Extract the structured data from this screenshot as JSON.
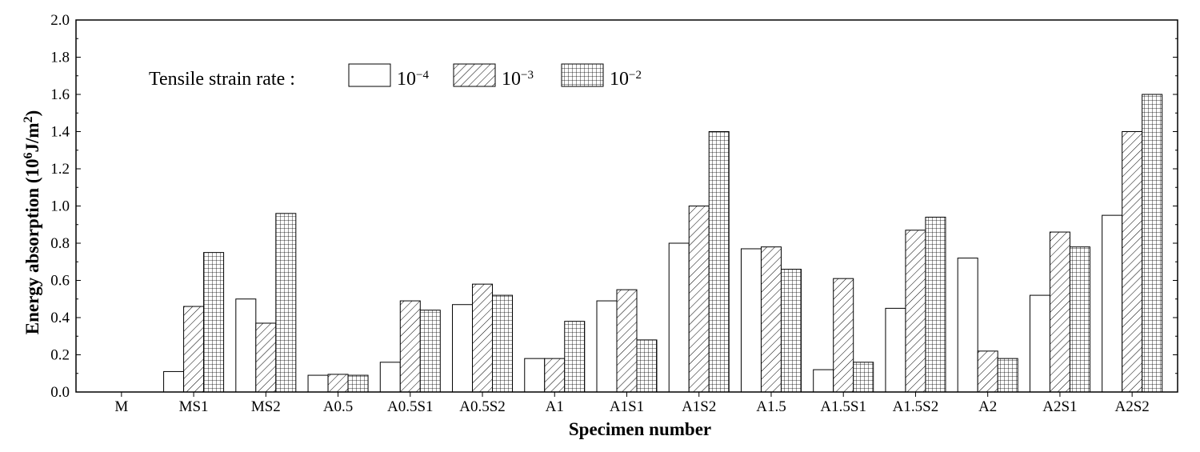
{
  "chart_data": {
    "type": "bar",
    "title": "",
    "xlabel": "Specimen number",
    "ylabel": "Energy absorption (10⁶J/m²)",
    "ylabel_parts": {
      "main": "Energy absorption (10",
      "sup1": "6",
      "mid": "J/m",
      "sup2": "2",
      "end": ")"
    },
    "ylim": [
      0,
      2.0
    ],
    "yticks": [
      "0.0",
      "0.2",
      "0.4",
      "0.6",
      "0.8",
      "1.0",
      "1.2",
      "1.4",
      "1.6",
      "1.8",
      "2.0"
    ],
    "categories": [
      "M",
      "MS1",
      "MS2",
      "A0.5",
      "A0.5S1",
      "A0.5S2",
      "A1",
      "A1S1",
      "A1S2",
      "A1.5",
      "A1.5S1",
      "A1.5S2",
      "A2",
      "A2S1",
      "A2S2"
    ],
    "legend_title": "Tensile strain rate :",
    "series": [
      {
        "name": "10⁻⁴",
        "base": "10",
        "exp": "−4",
        "pattern": "empty",
        "values": [
          0,
          0.11,
          0.5,
          0.09,
          0.16,
          0.47,
          0.18,
          0.49,
          0.8,
          0.77,
          0.12,
          0.45,
          0.72,
          0.52,
          0.95
        ]
      },
      {
        "name": "10⁻³",
        "base": "10",
        "exp": "−3",
        "pattern": "hatch",
        "values": [
          0,
          0.46,
          0.37,
          0.095,
          0.49,
          0.58,
          0.18,
          0.55,
          1.0,
          0.78,
          0.61,
          0.87,
          0.22,
          0.86,
          1.4
        ]
      },
      {
        "name": "10⁻²",
        "base": "10",
        "exp": "−2",
        "pattern": "grid",
        "values": [
          0,
          0.75,
          0.96,
          0.09,
          0.44,
          0.52,
          0.38,
          0.28,
          1.4,
          0.66,
          0.16,
          0.94,
          0.18,
          0.78,
          1.6
        ]
      }
    ]
  }
}
